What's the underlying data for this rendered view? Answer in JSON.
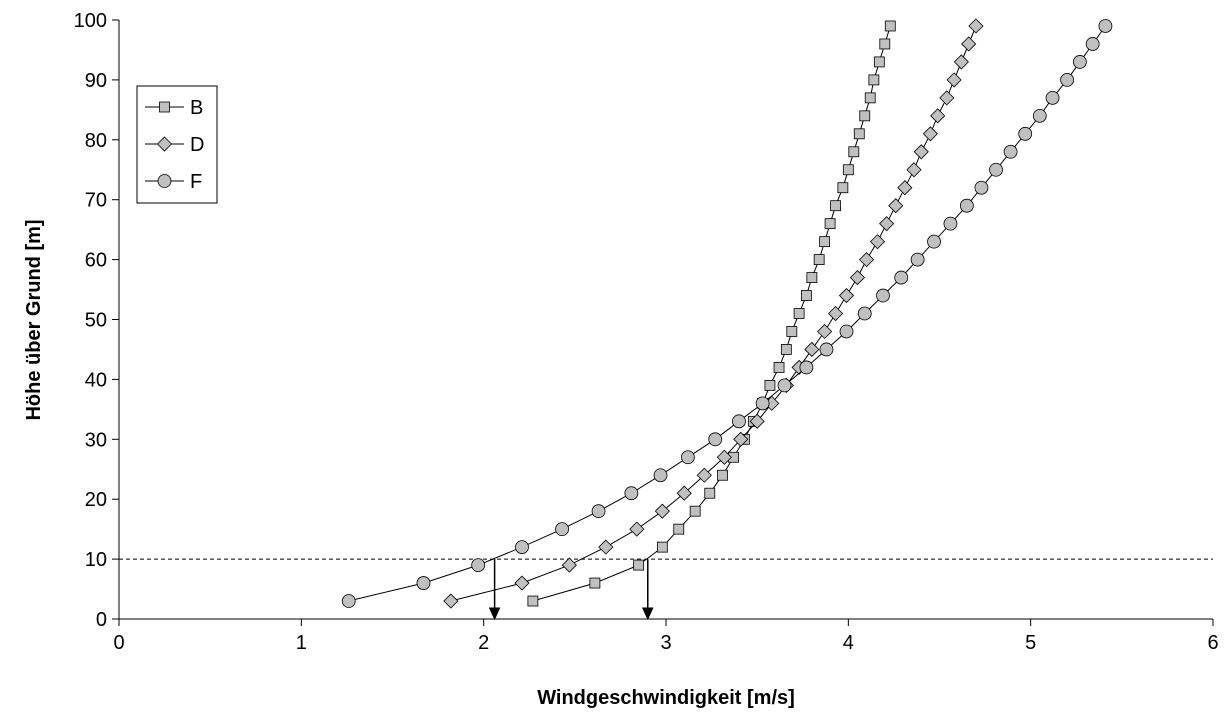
{
  "chart_data": {
    "type": "line",
    "title": "",
    "xlabel": "Windgeschwindigkeit [m/s]",
    "ylabel": "Höhe über Grund [m]",
    "xlim": [
      0,
      6
    ],
    "ylim": [
      0,
      100
    ],
    "xticks": [
      "0",
      "1",
      "2",
      "3",
      "4",
      "5",
      "6"
    ],
    "yticks": [
      "0",
      "10",
      "20",
      "30",
      "40",
      "50",
      "60",
      "70",
      "80",
      "90",
      "100"
    ],
    "grid": false,
    "legend_position": "top-left",
    "reference_line": {
      "y": 10,
      "style": "dashed"
    },
    "arrows": [
      {
        "x": 2.06,
        "from_y": 10,
        "to_y": 0
      },
      {
        "x": 2.9,
        "from_y": 10,
        "to_y": 0
      }
    ],
    "series": [
      {
        "name": "B",
        "marker": "square",
        "color": "#c0c0c0",
        "points": [
          [
            2.27,
            3
          ],
          [
            2.61,
            6
          ],
          [
            2.85,
            9
          ],
          [
            2.98,
            12
          ],
          [
            3.07,
            15
          ],
          [
            3.16,
            18
          ],
          [
            3.24,
            21
          ],
          [
            3.31,
            24
          ],
          [
            3.37,
            27
          ],
          [
            3.43,
            30
          ],
          [
            3.48,
            33
          ],
          [
            3.53,
            36
          ],
          [
            3.57,
            39
          ],
          [
            3.62,
            42
          ],
          [
            3.66,
            45
          ],
          [
            3.69,
            48
          ],
          [
            3.73,
            51
          ],
          [
            3.77,
            54
          ],
          [
            3.8,
            57
          ],
          [
            3.84,
            60
          ],
          [
            3.87,
            63
          ],
          [
            3.9,
            66
          ],
          [
            3.93,
            69
          ],
          [
            3.97,
            72
          ],
          [
            4.0,
            75
          ],
          [
            4.03,
            78
          ],
          [
            4.06,
            81
          ],
          [
            4.09,
            84
          ],
          [
            4.12,
            87
          ],
          [
            4.14,
            90
          ],
          [
            4.17,
            93
          ],
          [
            4.2,
            96
          ],
          [
            4.23,
            99
          ]
        ]
      },
      {
        "name": "D",
        "marker": "diamond",
        "color": "#c0c0c0",
        "points": [
          [
            1.82,
            3
          ],
          [
            2.21,
            6
          ],
          [
            2.47,
            9
          ],
          [
            2.67,
            12
          ],
          [
            2.84,
            15
          ],
          [
            2.98,
            18
          ],
          [
            3.1,
            21
          ],
          [
            3.21,
            24
          ],
          [
            3.32,
            27
          ],
          [
            3.41,
            30
          ],
          [
            3.5,
            33
          ],
          [
            3.58,
            36
          ],
          [
            3.66,
            39
          ],
          [
            3.73,
            42
          ],
          [
            3.8,
            45
          ],
          [
            3.87,
            48
          ],
          [
            3.93,
            51
          ],
          [
            3.99,
            54
          ],
          [
            4.05,
            57
          ],
          [
            4.1,
            60
          ],
          [
            4.16,
            63
          ],
          [
            4.21,
            66
          ],
          [
            4.26,
            69
          ],
          [
            4.31,
            72
          ],
          [
            4.36,
            75
          ],
          [
            4.4,
            78
          ],
          [
            4.45,
            81
          ],
          [
            4.49,
            84
          ],
          [
            4.54,
            87
          ],
          [
            4.58,
            90
          ],
          [
            4.62,
            93
          ],
          [
            4.66,
            96
          ],
          [
            4.7,
            99
          ]
        ]
      },
      {
        "name": "F",
        "marker": "circle",
        "color": "#c0c0c0",
        "points": [
          [
            1.26,
            3
          ],
          [
            1.67,
            6
          ],
          [
            1.97,
            9
          ],
          [
            2.21,
            12
          ],
          [
            2.43,
            15
          ],
          [
            2.63,
            18
          ],
          [
            2.81,
            21
          ],
          [
            2.97,
            24
          ],
          [
            3.12,
            27
          ],
          [
            3.27,
            30
          ],
          [
            3.4,
            33
          ],
          [
            3.53,
            36
          ],
          [
            3.65,
            39
          ],
          [
            3.77,
            42
          ],
          [
            3.88,
            45
          ],
          [
            3.99,
            48
          ],
          [
            4.09,
            51
          ],
          [
            4.19,
            54
          ],
          [
            4.29,
            57
          ],
          [
            4.38,
            60
          ],
          [
            4.47,
            63
          ],
          [
            4.56,
            66
          ],
          [
            4.65,
            69
          ],
          [
            4.73,
            72
          ],
          [
            4.81,
            75
          ],
          [
            4.89,
            78
          ],
          [
            4.97,
            81
          ],
          [
            5.05,
            84
          ],
          [
            5.12,
            87
          ],
          [
            5.2,
            90
          ],
          [
            5.27,
            93
          ],
          [
            5.34,
            96
          ],
          [
            5.41,
            99
          ]
        ]
      }
    ]
  }
}
